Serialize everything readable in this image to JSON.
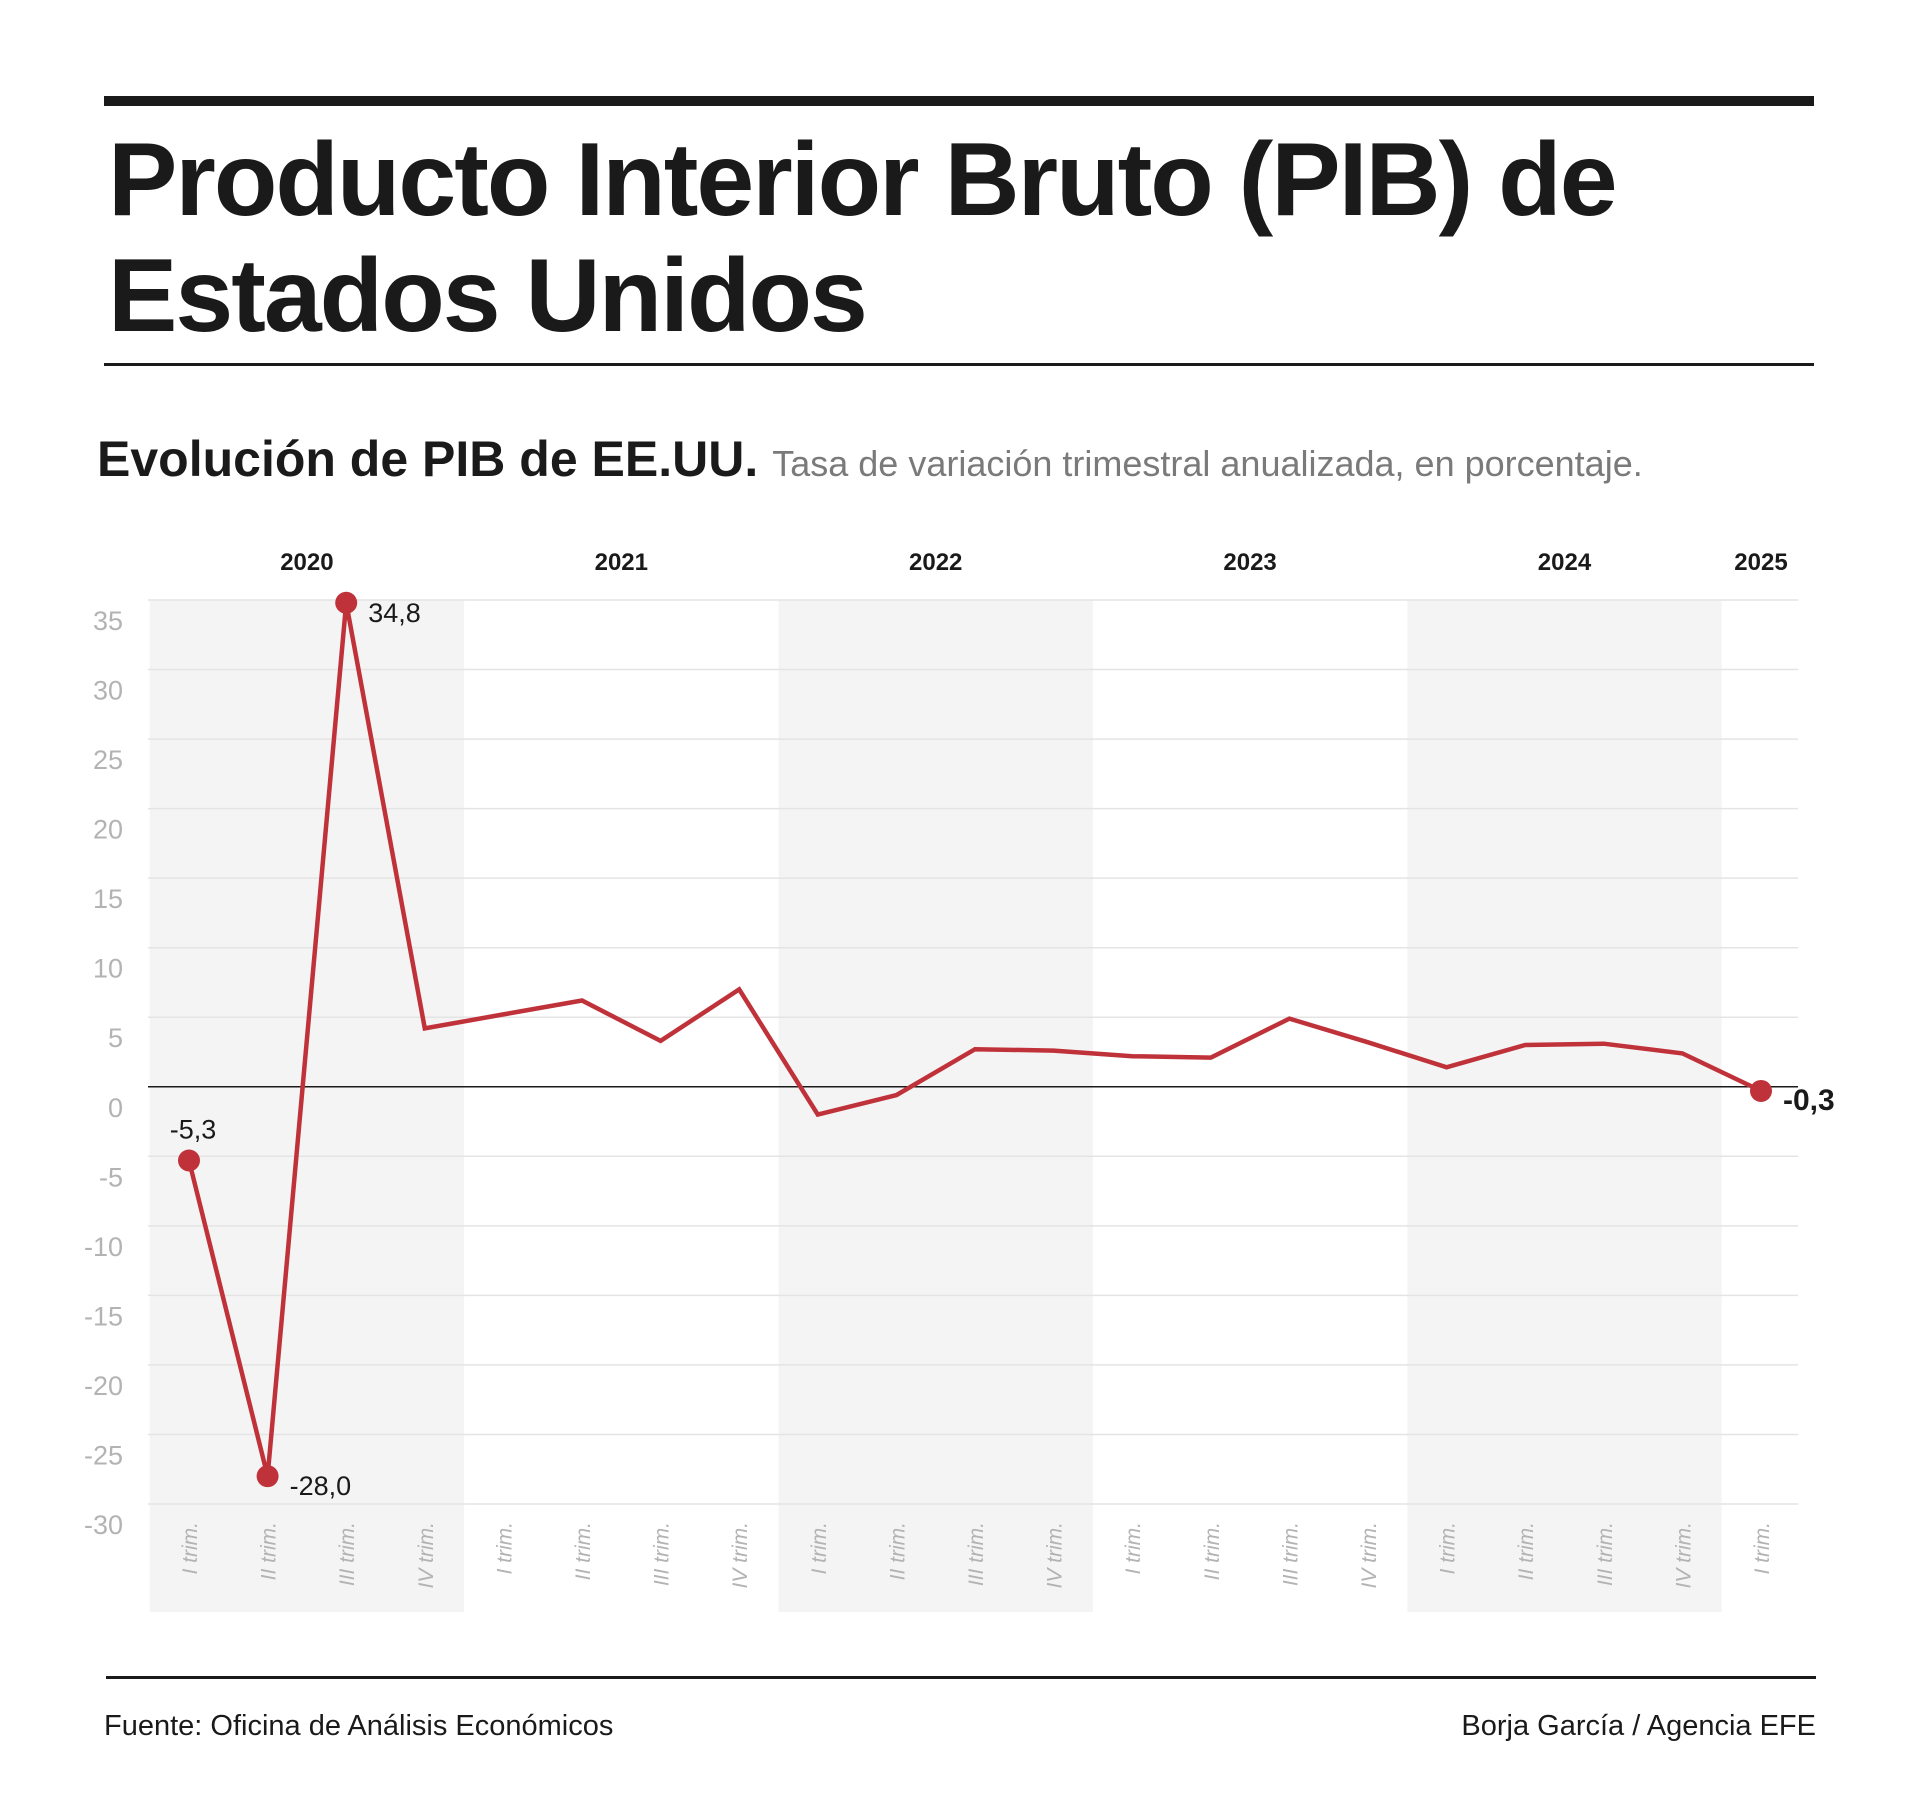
{
  "header": {
    "title": "Producto Interior Bruto (PIB) de Estados Unidos"
  },
  "subtitle": {
    "main": "Evolución de PIB de EE.UU.",
    "desc": "Tasa de variación trimestral anualizada, en porcentaje."
  },
  "footer": {
    "source": "Fuente: Oficina de Análisis Económicos",
    "credit": "Borja García / Agencia EFE"
  },
  "colors": {
    "line": "#c0323a",
    "band": "#f4f4f4",
    "grid": "#e4e4e4",
    "axis_text": "#b3b3b3",
    "zero_line": "#1a1a1a"
  },
  "chart_data": {
    "type": "line",
    "title": "Evolución de PIB de EE.UU.",
    "xlabel": "",
    "ylabel": "",
    "ylim": [
      -30,
      35
    ],
    "yticks": [
      35,
      30,
      25,
      20,
      15,
      10,
      5,
      0,
      -5,
      -10,
      -15,
      -20,
      -25,
      -30
    ],
    "ytick_labels": [
      "35",
      "30",
      "25",
      "20",
      "15",
      "10",
      "5",
      "0",
      "-5",
      "-10",
      "-15",
      "-20",
      "-25",
      "-30"
    ],
    "grid": true,
    "years": [
      {
        "label": "2020",
        "start": 0,
        "count": 4,
        "shaded": true
      },
      {
        "label": "2021",
        "start": 4,
        "count": 4,
        "shaded": false
      },
      {
        "label": "2022",
        "start": 8,
        "count": 4,
        "shaded": true
      },
      {
        "label": "2023",
        "start": 12,
        "count": 4,
        "shaded": false
      },
      {
        "label": "2024",
        "start": 16,
        "count": 4,
        "shaded": true
      },
      {
        "label": "2025",
        "start": 20,
        "count": 1,
        "shaded": false
      }
    ],
    "categories": [
      "I trim.",
      "II trim.",
      "III trim.",
      "IV trim.",
      "I trim.",
      "II trim.",
      "III trim.",
      "IV trim.",
      "I trim.",
      "II trim.",
      "III trim.",
      "IV trim.",
      "I trim.",
      "II trim.",
      "III trim.",
      "IV trim.",
      "I trim.",
      "II trim.",
      "III trim.",
      "IV trim.",
      "I trim."
    ],
    "series": [
      {
        "name": "PIB EE.UU.",
        "values": [
          -5.3,
          -28.0,
          34.8,
          4.2,
          5.2,
          6.2,
          3.3,
          7.0,
          -2.0,
          -0.6,
          2.7,
          2.6,
          2.2,
          2.1,
          4.9,
          3.2,
          1.4,
          3.0,
          3.1,
          2.4,
          -0.3
        ]
      }
    ],
    "labels": [
      {
        "index": 0,
        "text": "-5,3",
        "position": "above",
        "bold": false
      },
      {
        "index": 1,
        "text": "-28,0",
        "position": "right",
        "bold": false
      },
      {
        "index": 2,
        "text": "34,8",
        "position": "right",
        "bold": false
      },
      {
        "index": 20,
        "text": "-0,3",
        "position": "right",
        "bold": true
      }
    ]
  }
}
